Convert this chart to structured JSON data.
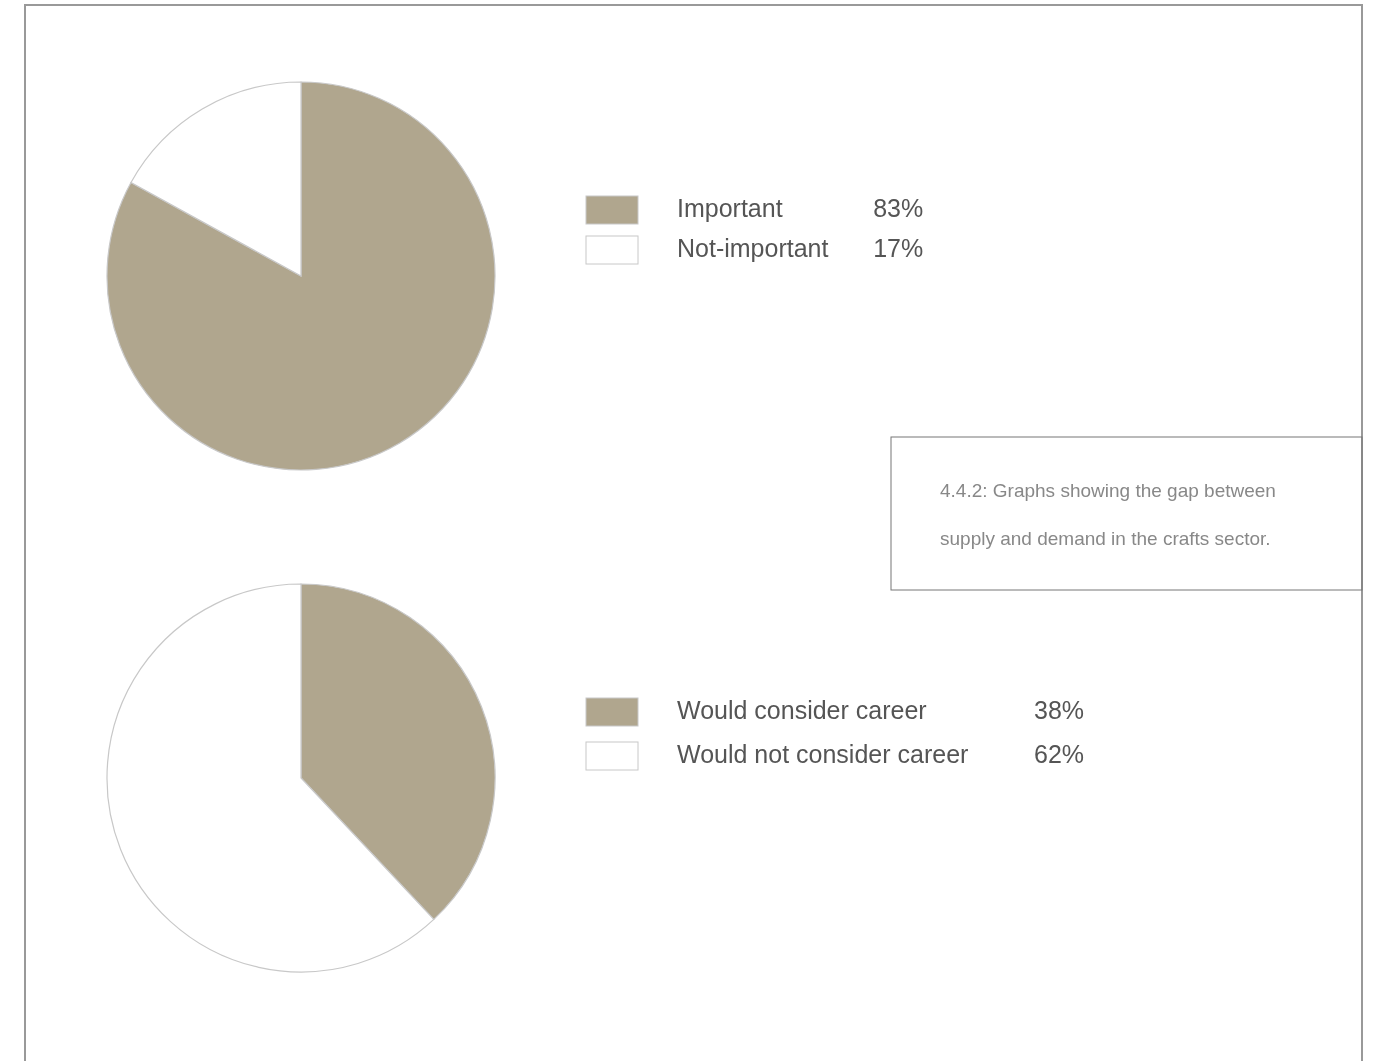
{
  "chart_data": [
    {
      "type": "pie",
      "categories": [
        "Important",
        "Not-important"
      ],
      "values": [
        83,
        17
      ],
      "colors": [
        "#b0a68e",
        "#ffffff"
      ],
      "legend": "right",
      "value_labels": [
        "83%",
        "17%"
      ]
    },
    {
      "type": "pie",
      "categories": [
        "Would consider career",
        "Would not consider career"
      ],
      "values": [
        38,
        62
      ],
      "colors": [
        "#b0a68e",
        "#ffffff"
      ],
      "legend": "right",
      "value_labels": [
        "38%",
        "62%"
      ]
    },
    {
      "type": "other",
      "annotations": [
        "4.4.2: Graphs showing the gap between supply and demand in the crafts sector."
      ]
    }
  ]
}
